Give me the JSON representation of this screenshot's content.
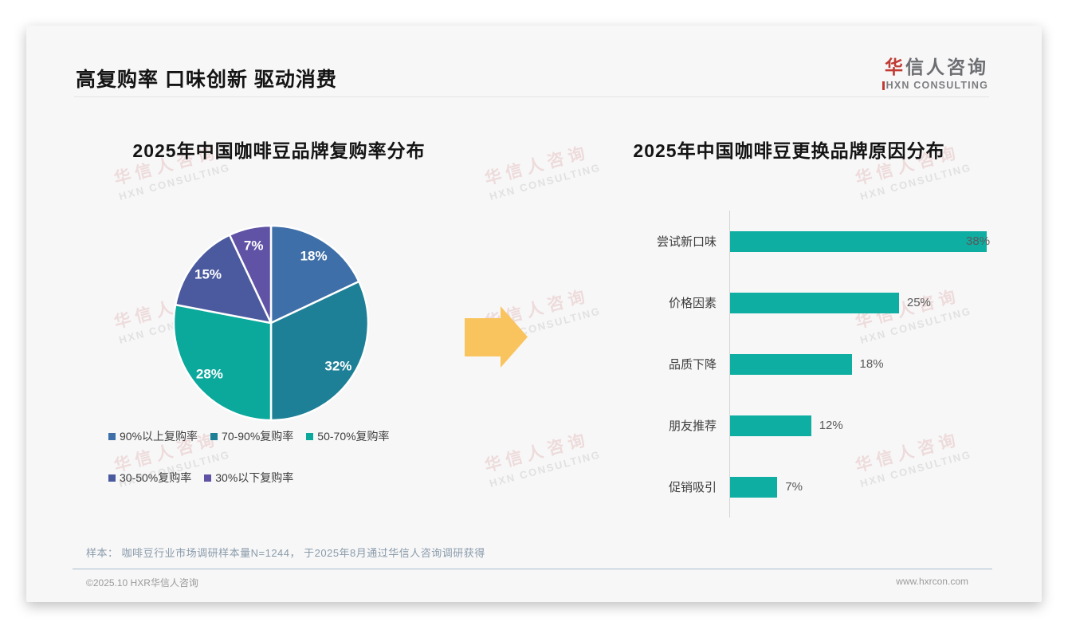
{
  "header": {
    "title": "高复购率 口味创新 驱动消费"
  },
  "logo": {
    "zh_first": "华",
    "zh_rest": "信人咨询",
    "en": "HXN CONSULTING",
    "accent_color": "#c13b33",
    "text_color": "#6d6e71"
  },
  "watermark": {
    "zh": "华信人咨询",
    "en": "HXN CONSULTING"
  },
  "chart_data": [
    {
      "type": "pie",
      "title": "2025年中国咖啡豆品牌复购率分布",
      "labels": [
        "90%以上复购率",
        "70-90%复购率",
        "50-70%复购率",
        "30-50%复购率",
        "30%以下复购率"
      ],
      "values": [
        18,
        32,
        28,
        15,
        7
      ],
      "data_labels": [
        "18%",
        "32%",
        "28%",
        "15%",
        "7%"
      ],
      "colors": [
        "#3F6FA8",
        "#1D8096",
        "#0BA89C",
        "#4B5A9F",
        "#6053A6"
      ],
      "legend_position": "bottom",
      "start_angle_deg": 0,
      "direction": "clockwise"
    },
    {
      "type": "bar",
      "title": "2025年中国咖啡豆更换品牌原因分布",
      "orientation": "horizontal",
      "categories": [
        "尝试新口味",
        "价格因素",
        "品质下降",
        "朋友推荐",
        "促销吸引"
      ],
      "values": [
        38,
        25,
        18,
        12,
        7
      ],
      "data_labels": [
        "38%",
        "25%",
        "18%",
        "12%",
        "7%"
      ],
      "bar_color": "#0FAEA2",
      "xlim": [
        0,
        40
      ],
      "grid": false
    }
  ],
  "arrow": {
    "color": "#F9C45E"
  },
  "footnote": {
    "text": "样本： 咖啡豆行业市场调研样本量N=1244， 于2025年8月通过华信人咨询调研获得"
  },
  "footer": {
    "left": "©2025.10 HXR华信人咨询",
    "right": "www.hxrcon.com"
  }
}
